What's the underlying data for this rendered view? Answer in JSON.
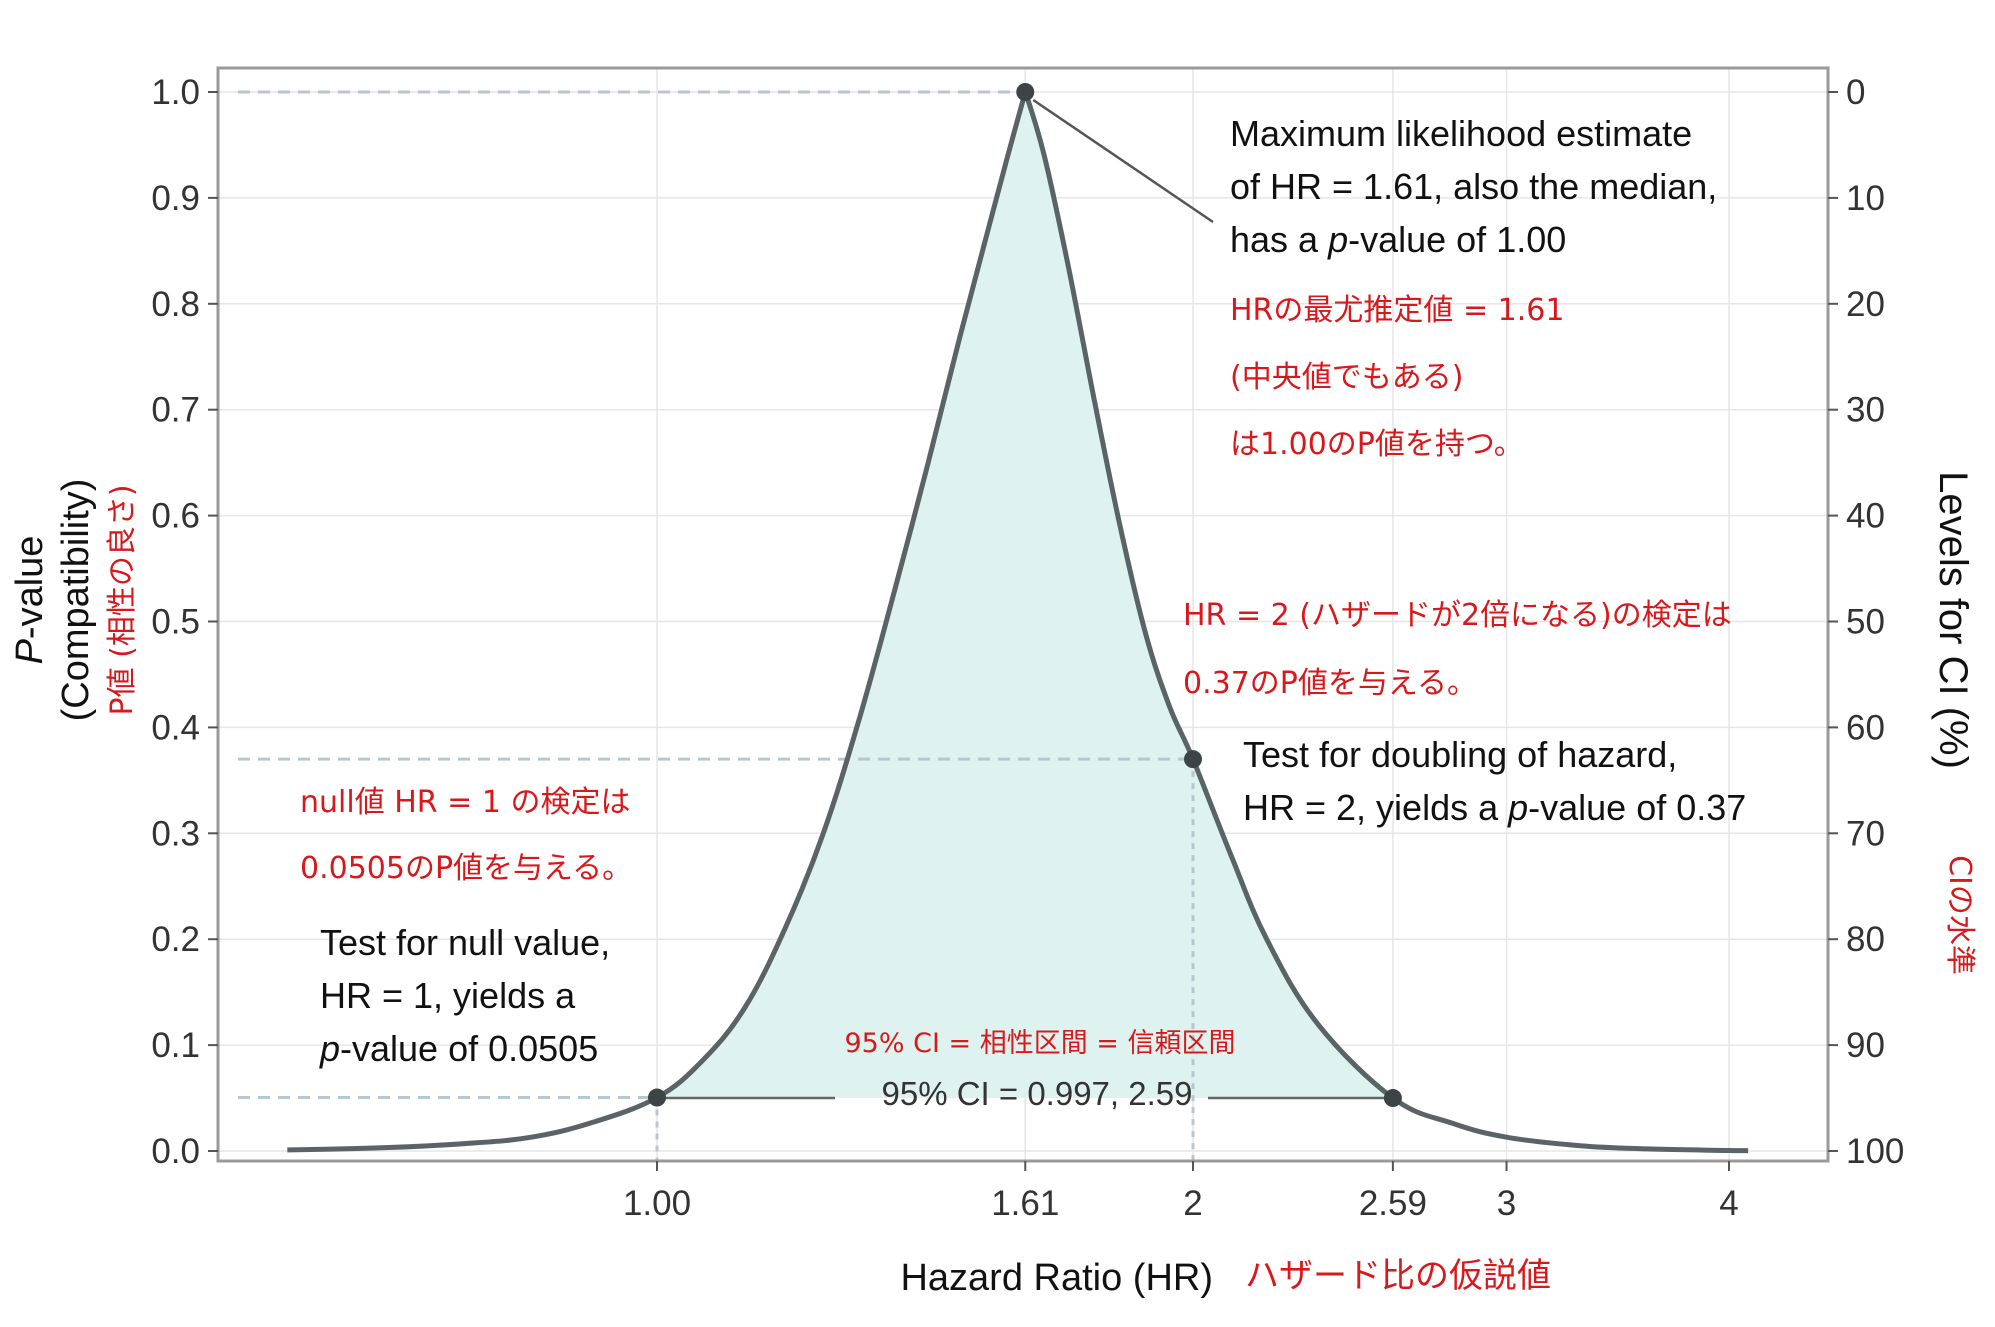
{
  "chart_data": {
    "type": "area",
    "xlabel": "Hazard Ratio (HR)",
    "xlabel_jp": "ハザード比の仮説値",
    "ylabel": [
      "P-value",
      "(Compatibility)"
    ],
    "ylabel_jp": "P値 (相性の良さ)",
    "y2label": "Levels for CI (%)",
    "y2label_jp": "CIの水準",
    "x_scale": "log",
    "xlim": [
      0.6,
      4.2
    ],
    "ylim": [
      0,
      1
    ],
    "x_ticks": [
      "1.00",
      "1.61",
      "2",
      "2.59",
      "3",
      "4"
    ],
    "x_tick_values": [
      1.0,
      1.61,
      2,
      2.59,
      3,
      4
    ],
    "y_ticks": [
      "0.0",
      "0.1",
      "0.2",
      "0.3",
      "0.4",
      "0.5",
      "0.6",
      "0.7",
      "0.8",
      "0.9",
      "1.0"
    ],
    "y_tick_values": [
      0,
      0.1,
      0.2,
      0.3,
      0.4,
      0.5,
      0.6,
      0.7,
      0.8,
      0.9,
      1.0
    ],
    "y2_ticks": [
      "0",
      "10",
      "20",
      "30",
      "40",
      "50",
      "60",
      "70",
      "80",
      "90",
      "100"
    ],
    "grid": true,
    "curve": {
      "name": "P-value function",
      "mle": 1.61,
      "points": [
        {
          "x": 0.62,
          "y": 0.001
        },
        {
          "x": 0.7,
          "y": 0.003
        },
        {
          "x": 0.78,
          "y": 0.007
        },
        {
          "x": 0.85,
          "y": 0.013
        },
        {
          "x": 0.92,
          "y": 0.027
        },
        {
          "x": 1.0,
          "y": 0.0505
        },
        {
          "x": 1.06,
          "y": 0.085
        },
        {
          "x": 1.12,
          "y": 0.135
        },
        {
          "x": 1.18,
          "y": 0.21
        },
        {
          "x": 1.24,
          "y": 0.3
        },
        {
          "x": 1.3,
          "y": 0.41
        },
        {
          "x": 1.36,
          "y": 0.53
        },
        {
          "x": 1.42,
          "y": 0.65
        },
        {
          "x": 1.48,
          "y": 0.77
        },
        {
          "x": 1.54,
          "y": 0.88
        },
        {
          "x": 1.58,
          "y": 0.95
        },
        {
          "x": 1.61,
          "y": 1.0
        },
        {
          "x": 1.65,
          "y": 0.94
        },
        {
          "x": 1.7,
          "y": 0.84
        },
        {
          "x": 1.76,
          "y": 0.71
        },
        {
          "x": 1.82,
          "y": 0.59
        },
        {
          "x": 1.88,
          "y": 0.49
        },
        {
          "x": 1.94,
          "y": 0.42
        },
        {
          "x": 2.0,
          "y": 0.37
        },
        {
          "x": 2.1,
          "y": 0.28
        },
        {
          "x": 2.2,
          "y": 0.2
        },
        {
          "x": 2.35,
          "y": 0.12
        },
        {
          "x": 2.59,
          "y": 0.05
        },
        {
          "x": 2.8,
          "y": 0.026
        },
        {
          "x": 3.0,
          "y": 0.013
        },
        {
          "x": 3.3,
          "y": 0.005
        },
        {
          "x": 3.6,
          "y": 0.002
        },
        {
          "x": 4.0,
          "y": 0.0005
        },
        {
          "x": 4.1,
          "y": 0.0003
        }
      ]
    },
    "highlighted_points": [
      {
        "x": 1.0,
        "y": 0.0505
      },
      {
        "x": 1.61,
        "y": 1.0
      },
      {
        "x": 2.0,
        "y": 0.37
      },
      {
        "x": 2.59,
        "y": 0.05
      }
    ],
    "ci": {
      "lower": 0.997,
      "upper": 2.59,
      "level": 95,
      "label": "95% CI = 0.997, 2.59"
    },
    "annotations": {
      "mle": {
        "lines": [
          "Maximum likelihood estimate",
          "of HR = 1.61, also the median,"
        ],
        "line3_a": "has a ",
        "line3_b": "p",
        "line3_c": "-value of 1.00",
        "jp": [
          "HRの最尤推定値 = 1.61",
          "(中央値でもある)",
          "は1.00のP値を持つ。"
        ]
      },
      "doubling": {
        "line1": "Test for doubling of hazard,",
        "line2_a": "HR = 2, yields a ",
        "line2_b": "p",
        "line2_c": "-value of 0.37",
        "jp": [
          "HR = 2 (ハザードが2倍になる)の検定は",
          "0.37のP値を与える。"
        ]
      },
      "null": {
        "line1": "Test for null value,",
        "line2": "HR = 1, yields a",
        "line3_a": "p",
        "line3_b": "-value of 0.0505",
        "jp": [
          "null値 HR = 1 の検定は",
          "0.0505のP値を与える。"
        ]
      },
      "ci_jp": "95% CI = 相性区間 = 信頼区間"
    },
    "colors": {
      "fill": "#def3f0",
      "line": "#5a6466",
      "point": "#3d4446",
      "guide": "#b8c6d2",
      "jp_text": "#d7191c"
    }
  }
}
